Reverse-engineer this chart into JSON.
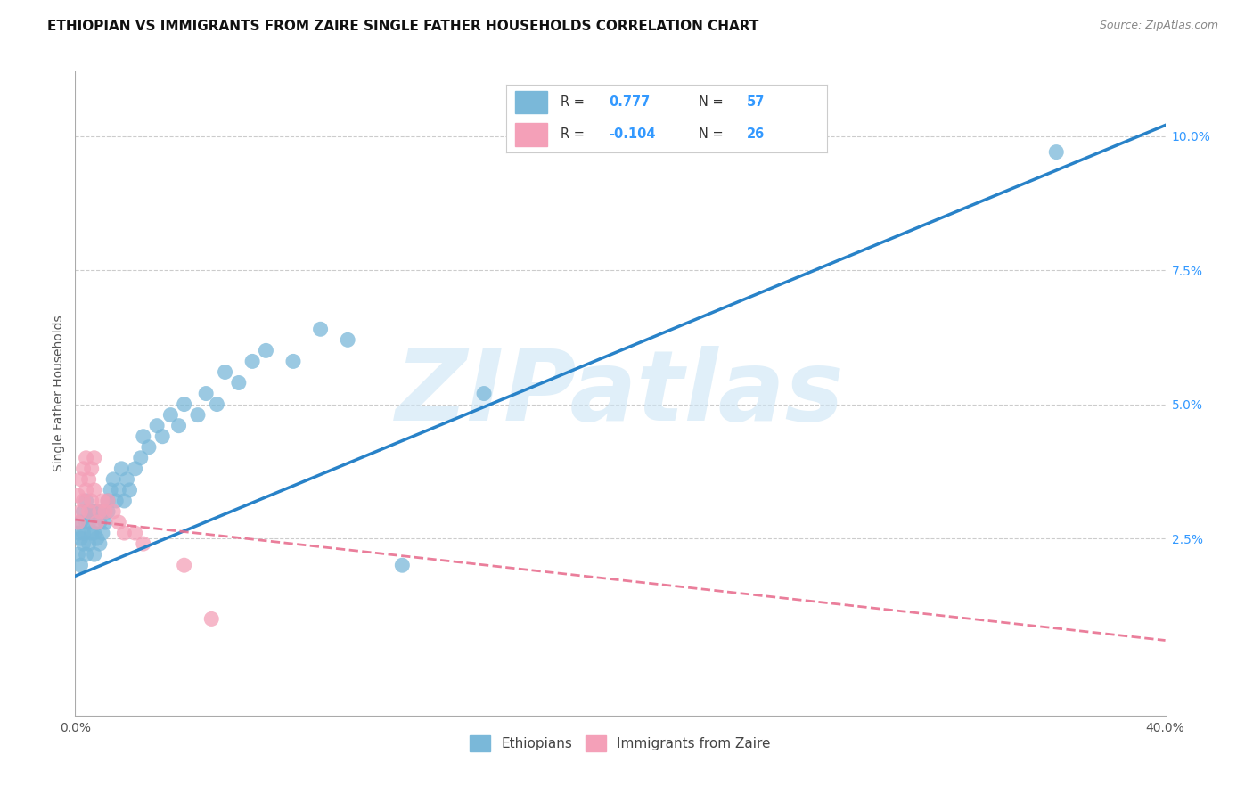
{
  "title": "ETHIOPIAN VS IMMIGRANTS FROM ZAIRE SINGLE FATHER HOUSEHOLDS CORRELATION CHART",
  "source": "Source: ZipAtlas.com",
  "ylabel": "Single Father Households",
  "xlim": [
    0.0,
    0.4
  ],
  "ylim": [
    -0.008,
    0.112
  ],
  "x_ticks": [
    0.0,
    0.05,
    0.1,
    0.15,
    0.2,
    0.25,
    0.3,
    0.35,
    0.4
  ],
  "x_tick_labels": [
    "0.0%",
    "",
    "",
    "",
    "",
    "",
    "",
    "",
    "40.0%"
  ],
  "y_ticks_right": [
    0.025,
    0.05,
    0.075,
    0.1
  ],
  "y_tick_labels_right": [
    "2.5%",
    "5.0%",
    "7.5%",
    "10.0%"
  ],
  "watermark": "ZIPatlas",
  "legend_label1": "Ethiopians",
  "legend_label2": "Immigrants from Zaire",
  "color_ethiopian": "#7ab8d9",
  "color_zaire": "#f4a0b8",
  "color_line_ethiopian": "#2882c8",
  "color_line_zaire": "#e87090",
  "eth_line_x0": 0.0,
  "eth_line_y0": 0.018,
  "eth_line_x1": 0.4,
  "eth_line_y1": 0.102,
  "zaire_line_x0": 0.0,
  "zaire_line_y0": 0.0285,
  "zaire_line_x1": 0.4,
  "zaire_line_y1": 0.006,
  "ethiopian_x": [
    0.001,
    0.001,
    0.002,
    0.002,
    0.002,
    0.003,
    0.003,
    0.003,
    0.004,
    0.004,
    0.004,
    0.005,
    0.005,
    0.006,
    0.006,
    0.007,
    0.007,
    0.007,
    0.008,
    0.008,
    0.009,
    0.009,
    0.01,
    0.01,
    0.011,
    0.012,
    0.012,
    0.013,
    0.014,
    0.015,
    0.016,
    0.017,
    0.018,
    0.019,
    0.02,
    0.022,
    0.024,
    0.025,
    0.027,
    0.03,
    0.032,
    0.035,
    0.038,
    0.04,
    0.045,
    0.048,
    0.052,
    0.055,
    0.06,
    0.065,
    0.07,
    0.08,
    0.09,
    0.1,
    0.12,
    0.15,
    0.36
  ],
  "ethiopian_y": [
    0.022,
    0.026,
    0.02,
    0.025,
    0.028,
    0.024,
    0.026,
    0.03,
    0.022,
    0.028,
    0.032,
    0.024,
    0.028,
    0.026,
    0.03,
    0.022,
    0.026,
    0.03,
    0.025,
    0.03,
    0.024,
    0.028,
    0.026,
    0.03,
    0.028,
    0.032,
    0.03,
    0.034,
    0.036,
    0.032,
    0.034,
    0.038,
    0.032,
    0.036,
    0.034,
    0.038,
    0.04,
    0.044,
    0.042,
    0.046,
    0.044,
    0.048,
    0.046,
    0.05,
    0.048,
    0.052,
    0.05,
    0.056,
    0.054,
    0.058,
    0.06,
    0.058,
    0.064,
    0.062,
    0.02,
    0.052,
    0.097
  ],
  "zaire_x": [
    0.001,
    0.001,
    0.002,
    0.002,
    0.003,
    0.003,
    0.004,
    0.004,
    0.005,
    0.005,
    0.006,
    0.006,
    0.007,
    0.007,
    0.008,
    0.009,
    0.01,
    0.011,
    0.012,
    0.014,
    0.016,
    0.018,
    0.022,
    0.025,
    0.04,
    0.05
  ],
  "zaire_y": [
    0.028,
    0.033,
    0.03,
    0.036,
    0.032,
    0.038,
    0.034,
    0.04,
    0.03,
    0.036,
    0.032,
    0.038,
    0.034,
    0.04,
    0.028,
    0.03,
    0.032,
    0.03,
    0.032,
    0.03,
    0.028,
    0.026,
    0.026,
    0.024,
    0.02,
    0.01
  ],
  "title_fontsize": 11,
  "label_fontsize": 10,
  "tick_fontsize": 10,
  "source_fontsize": 9
}
